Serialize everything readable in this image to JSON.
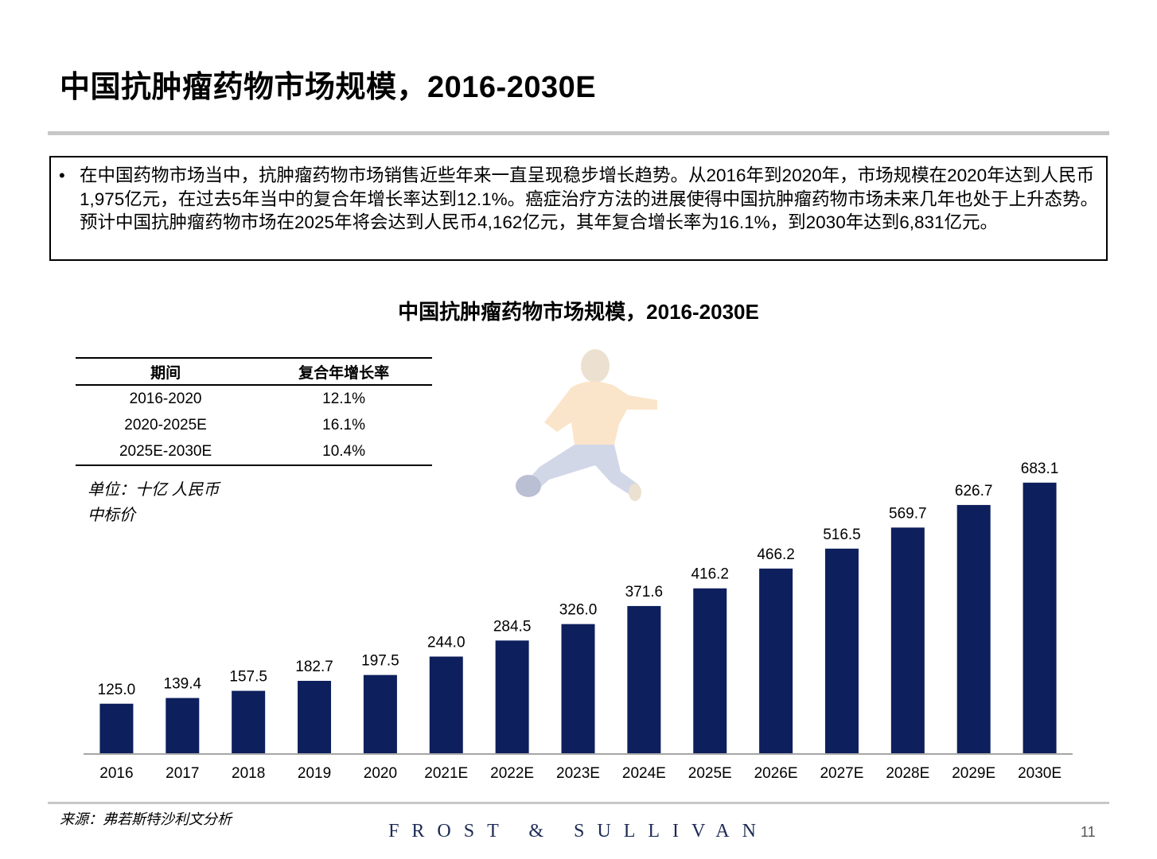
{
  "page": {
    "title": "中国抗肿瘤药物市场规模，2016-2030E",
    "summary_bullet": "•",
    "summary": "在中国药物市场当中，抗肿瘤药物市场销售近些年来一直呈现稳步增长趋势。从2016年到2020年，市场规模在2020年达到人民币1,975亿元，在过去5年当中的复合年增长率达到12.1%。癌症治疗方法的进展使得中国抗肿瘤药物市场未来几年也处于上升态势。预计中国抗肿瘤药物市场在2025年将会达到人民币4,162亿元，其年复合增长率为16.1%，到2030年达到6,831亿元。",
    "source": "来源：弗若斯特沙利文分析",
    "brand": "FROST & SULLIVAN",
    "page_number": "11"
  },
  "cagr_table": {
    "headers": [
      "期间",
      "复合年增长率"
    ],
    "rows": [
      {
        "period": "2016-2020",
        "rate": "12.1%"
      },
      {
        "period": "2020-2025E",
        "rate": "16.1%"
      },
      {
        "period": "2025E-2030E",
        "rate": "10.4%"
      }
    ]
  },
  "unit_note": {
    "line1": "单位：十亿 人民币",
    "line2": "中标价"
  },
  "chart_data": {
    "type": "bar",
    "title": "中国抗肿瘤药物市场规模，2016-2030E",
    "xlabel": "",
    "ylabel": "",
    "categories": [
      "2016",
      "2017",
      "2018",
      "2019",
      "2020",
      "2021E",
      "2022E",
      "2023E",
      "2024E",
      "2025E",
      "2026E",
      "2027E",
      "2028E",
      "2029E",
      "2030E"
    ],
    "values": [
      125.0,
      139.4,
      157.5,
      182.7,
      197.5,
      244.0,
      284.5,
      326.0,
      371.6,
      416.2,
      466.2,
      516.5,
      569.7,
      626.7,
      683.1
    ],
    "value_labels": [
      "125.0",
      "139.4",
      "157.5",
      "182.7",
      "197.5",
      "244.0",
      "284.5",
      "326.0",
      "371.6",
      "416.2",
      "466.2",
      "516.5",
      "569.7",
      "626.7",
      "683.1"
    ],
    "ylim": [
      0,
      700
    ],
    "grid": false,
    "bar_color": "#0d1f5c",
    "axis_color": "#a6a6a6"
  }
}
